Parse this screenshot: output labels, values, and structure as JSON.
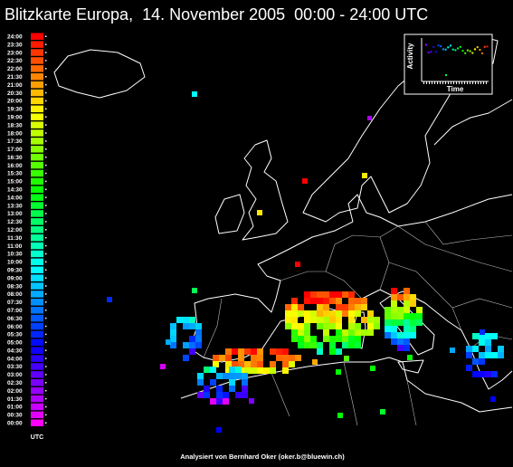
{
  "header": {
    "title": "Blitzkarte Europa,  14. November 2005  00:00 - 24:00 UTC"
  },
  "legend": {
    "labels": [
      "24:00",
      "23:30",
      "23:00",
      "22:30",
      "22:00",
      "21:30",
      "21:00",
      "20:30",
      "20:00",
      "19:30",
      "19:00",
      "18:30",
      "18:00",
      "17:30",
      "17:00",
      "16:30",
      "16:00",
      "15:30",
      "15:00",
      "14:30",
      "14:00",
      "13:30",
      "13:00",
      "12:30",
      "12:00",
      "11:30",
      "11:00",
      "10:30",
      "10:00",
      "09:30",
      "09:00",
      "08:30",
      "08:00",
      "07:30",
      "07:00",
      "06:30",
      "06:00",
      "05:30",
      "05:00",
      "04:30",
      "04:00",
      "03:30",
      "03:00",
      "02:30",
      "02:00",
      "01:30",
      "01:00",
      "00:30",
      "00:00"
    ],
    "unit": "UTC"
  },
  "inset": {
    "y_label": "Activity",
    "x_label": "Time"
  },
  "footer": {
    "credit": "Analysiert von Bernhard Oker (oker.b@bluewin.ch)"
  }
}
